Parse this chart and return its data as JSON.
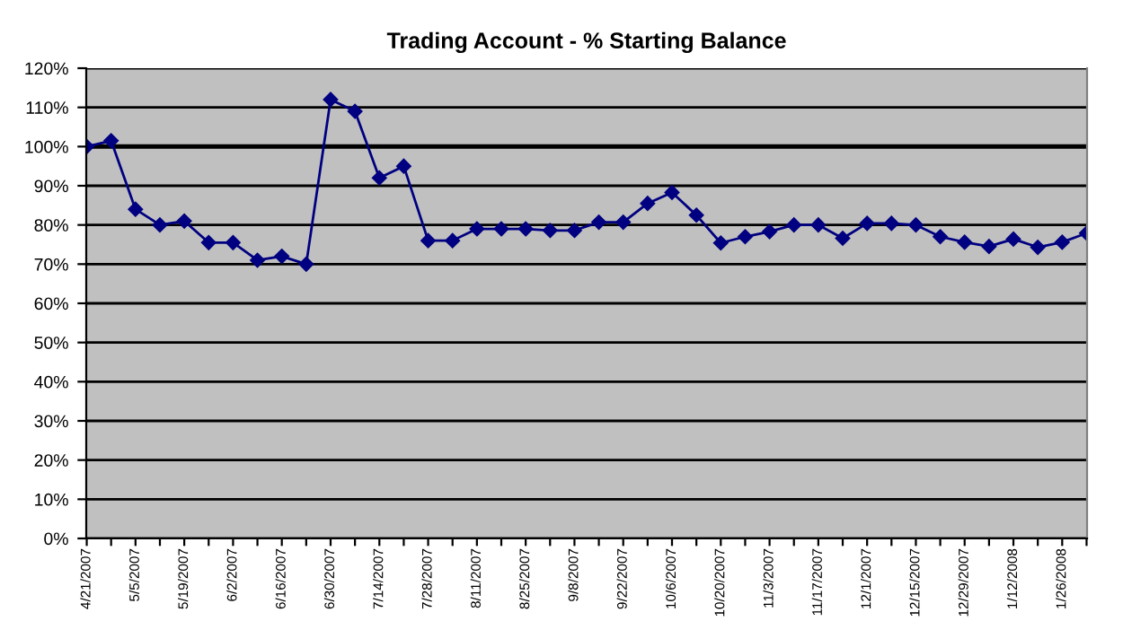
{
  "chart_data": {
    "type": "line",
    "title": "Trading Account - % Starting Balance",
    "categories": [
      "4/21/2007",
      null,
      "5/5/2007",
      null,
      "5/19/2007",
      null,
      "6/2/2007",
      null,
      "6/16/2007",
      null,
      "6/30/2007",
      null,
      "7/14/2007",
      null,
      "7/28/2007",
      null,
      "8/11/2007",
      null,
      "8/25/2007",
      null,
      "9/8/2007",
      null,
      "9/22/2007",
      null,
      "10/6/2007",
      null,
      "10/20/2007",
      null,
      "11/3/2007",
      null,
      "11/17/2007",
      null,
      "12/1/2007",
      null,
      "12/15/2007",
      null,
      "12/29/2007",
      null,
      "1/12/2008",
      null,
      "1/26/2008",
      null
    ],
    "series": [
      {
        "color": "#000080",
        "values": [
          100,
          101.5,
          84,
          80,
          81,
          75.5,
          75.5,
          71,
          72,
          70,
          112,
          109,
          92,
          95,
          76,
          76,
          79,
          79,
          79,
          78.6,
          78.6,
          80.7,
          80.7,
          85.5,
          88.3,
          82.5,
          75.4,
          77,
          78.3,
          80,
          80,
          76.6,
          80.4,
          80.4,
          80,
          77,
          75.6,
          74.5,
          76.4,
          74.3,
          75.6,
          77.9
        ]
      }
    ],
    "ylim": [
      0,
      120
    ],
    "yticks": [
      {
        "value": 0,
        "label": "0%"
      },
      {
        "value": 10,
        "label": "10%"
      },
      {
        "value": 20,
        "label": "20%"
      },
      {
        "value": 30,
        "label": "30%"
      },
      {
        "value": 40,
        "label": "40%"
      },
      {
        "value": 50,
        "label": "50%"
      },
      {
        "value": 60,
        "label": "60%"
      },
      {
        "value": 70,
        "label": "70%"
      },
      {
        "value": 80,
        "label": "80%"
      },
      {
        "value": 90,
        "label": "90%"
      },
      {
        "value": 100,
        "label": "100%"
      },
      {
        "value": 110,
        "label": "110%"
      },
      {
        "value": 120,
        "label": "120%"
      }
    ],
    "ref_lines": [
      {
        "axis": "y",
        "value": 100,
        "color": "#000000"
      }
    ],
    "grid": "y",
    "marker": "diamond",
    "line_style": "solid",
    "legend": false
  }
}
